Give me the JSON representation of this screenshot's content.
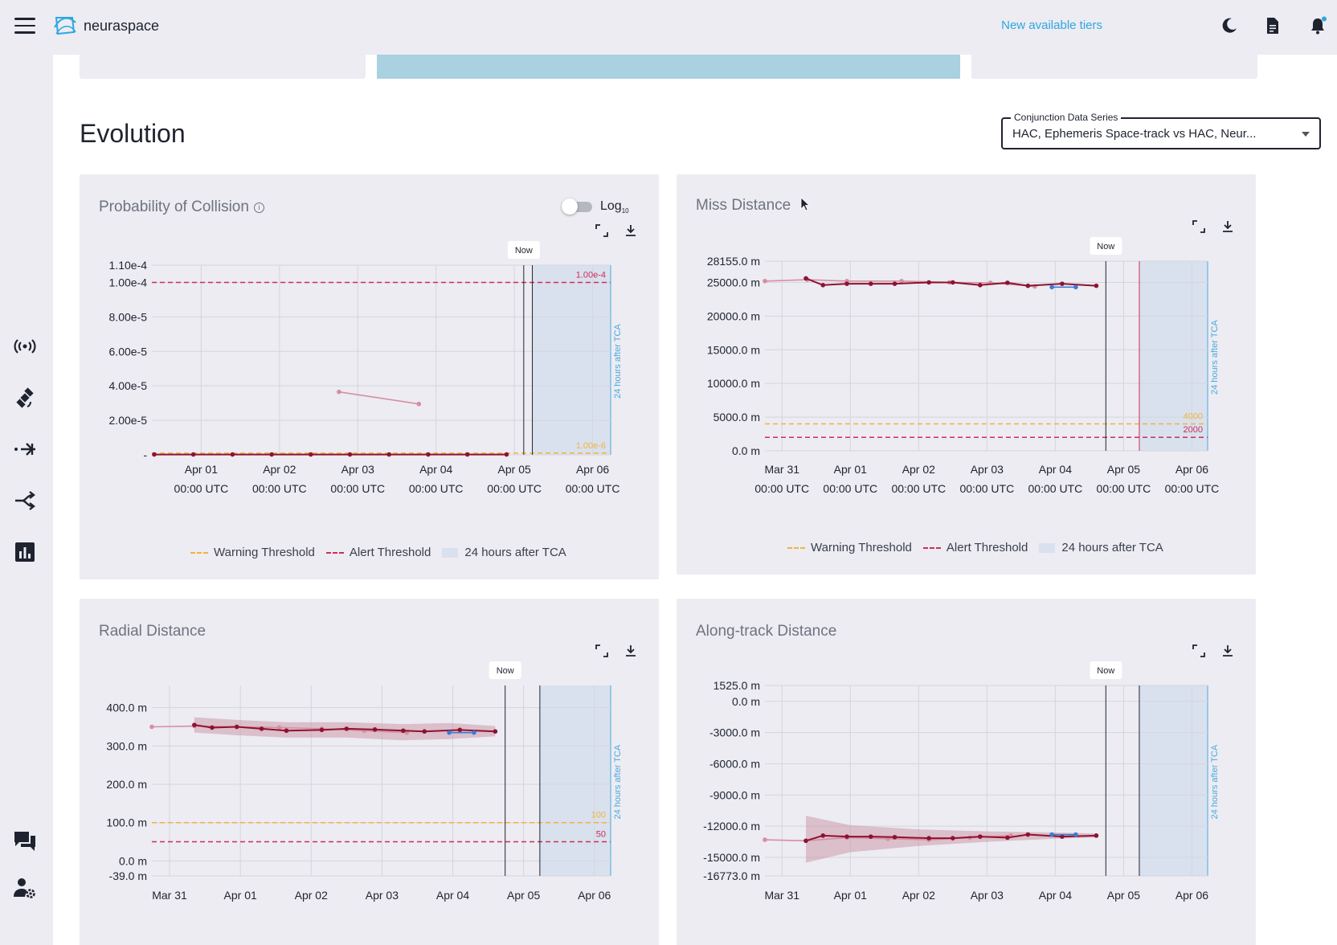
{
  "app": {
    "brand": "neuraspace",
    "tiers_link": "New available tiers"
  },
  "icons": {
    "menu": "menu-icon",
    "theme": "moon-icon",
    "docs": "document-icon",
    "bell": "bell-icon",
    "sidebar": [
      "antenna-icon",
      "satellite-icon",
      "merge-arrow-icon",
      "split-arrow-icon",
      "bar-chart-icon",
      "chat-icon",
      "user-settings-icon"
    ]
  },
  "colors": {
    "accent": "#2ea7e0",
    "warning": "#f0b43c",
    "alert": "#cc2e55",
    "series": "#8e1230",
    "series_light": "#d78ea2",
    "band": "#d9e1ef",
    "blue_series": "#3a7bd5"
  },
  "evolution": {
    "title": "Evolution",
    "series_select": {
      "label": "Conjunction Data Series",
      "value": "HAC, Ephemeris Space-track vs HAC, Neur..."
    }
  },
  "legend": {
    "warning": "Warning Threshold",
    "alert": "Alert Threshold",
    "band": "24 hours after TCA"
  },
  "chart_data": [
    {
      "id": "poc",
      "type": "line",
      "title": "Probability of Collision",
      "toggle_label": "Log",
      "toggle_sub": "10",
      "log_enabled": false,
      "now_label": "Now",
      "band_label": "24 hours after TCA",
      "x_ticks": [
        [
          "Apr 01",
          "00:00 UTC"
        ],
        [
          "Apr 02",
          "00:00 UTC"
        ],
        [
          "Apr 03",
          "00:00 UTC"
        ],
        [
          "Apr 04",
          "00:00 UTC"
        ],
        [
          "Apr 05",
          "00:00 UTC"
        ],
        [
          "Apr 06",
          "00:00 UTC"
        ]
      ],
      "x_tick_days": [
        1,
        2,
        3,
        4,
        5,
        6
      ],
      "xlim": [
        0.37,
        6.23
      ],
      "y_ticks": [
        [
          "1.10e-4",
          0.00011
        ],
        [
          "1.00e-4",
          0.0001
        ],
        [
          "8.00e-5",
          8e-05
        ],
        [
          "6.00e-5",
          6e-05
        ],
        [
          "4.00e-5",
          4e-05
        ],
        [
          "2.00e-5",
          2e-05
        ],
        [
          "-",
          0
        ]
      ],
      "ylim": [
        0,
        0.00011
      ],
      "alert_value": 0.0001,
      "alert_label": "1.00e-4",
      "warning_value": 1e-06,
      "warning_label": "1.00e-6",
      "now_day": 5.12,
      "tca_day": 5.23,
      "band": [
        5.23,
        6.23
      ],
      "series": [
        {
          "name": "primary",
          "style": "dark",
          "x": [
            0.4,
            0.9,
            1.4,
            1.9,
            2.4,
            2.9,
            3.4,
            3.9,
            4.4,
            4.9
          ],
          "y": [
            2e-07,
            2e-07,
            2e-07,
            2e-07,
            2e-07,
            2e-07,
            2e-07,
            2e-07,
            2e-07,
            2e-07
          ]
        },
        {
          "name": "secondary",
          "style": "light",
          "x": [
            2.76,
            3.78
          ],
          "y": [
            3.65e-05,
            2.95e-05
          ]
        }
      ]
    },
    {
      "id": "miss",
      "type": "line",
      "title": "Miss Distance",
      "now_label": "Now",
      "band_label": "24 hours after TCA",
      "x_ticks": [
        [
          "Mar 31",
          "00:00 UTC"
        ],
        [
          "Apr 01",
          "00:00 UTC"
        ],
        [
          "Apr 02",
          "00:00 UTC"
        ],
        [
          "Apr 03",
          "00:00 UTC"
        ],
        [
          "Apr 04",
          "00:00 UTC"
        ],
        [
          "Apr 05",
          "00:00 UTC"
        ],
        [
          "Apr 06",
          "00:00 UTC"
        ]
      ],
      "x_tick_days": [
        0,
        1,
        2,
        3,
        4,
        5,
        6
      ],
      "xlim": [
        -0.25,
        6.23
      ],
      "y_ticks": [
        [
          "28155.0 m",
          28155
        ],
        [
          "25000.0 m",
          25000
        ],
        [
          "20000.0 m",
          20000
        ],
        [
          "15000.0 m",
          15000
        ],
        [
          "10000.0 m",
          10000
        ],
        [
          "5000.0 m",
          5000
        ],
        [
          "0.0 m",
          0
        ]
      ],
      "ylim": [
        0,
        28155
      ],
      "alert_value": 2000,
      "alert_label": "2000",
      "warning_value": 4000,
      "warning_label": "4000",
      "now_day": 4.74,
      "tca_day": 5.23,
      "band": [
        5.23,
        6.23
      ],
      "series": [
        {
          "name": "light",
          "style": "light",
          "x": [
            -0.25,
            0.37,
            0.95,
            1.75,
            2.45,
            3.05,
            3.7
          ],
          "y": [
            25200,
            25400,
            25200,
            25200,
            25000,
            24950,
            24400
          ]
        },
        {
          "name": "dark",
          "style": "dark",
          "x": [
            0.35,
            0.6,
            0.95,
            1.3,
            1.65,
            2.15,
            2.5,
            2.9,
            3.3,
            3.6,
            4.1,
            4.6
          ],
          "y": [
            25600,
            24600,
            24800,
            24800,
            24800,
            25000,
            25000,
            24600,
            24950,
            24500,
            24800,
            24500
          ]
        },
        {
          "name": "blue",
          "style": "blue",
          "x": [
            3.95,
            4.3
          ],
          "y": [
            24300,
            24300
          ]
        }
      ]
    },
    {
      "id": "radial",
      "type": "line",
      "title": "Radial Distance",
      "now_label": "Now",
      "band_label": "24 hours after TCA",
      "x_ticks": [
        [
          "Mar 31",
          ""
        ],
        [
          "Apr 01",
          ""
        ],
        [
          "Apr 02",
          ""
        ],
        [
          "Apr 03",
          ""
        ],
        [
          "Apr 04",
          ""
        ],
        [
          "Apr 05",
          ""
        ],
        [
          "Apr 06",
          ""
        ]
      ],
      "x_tick_days": [
        0,
        1,
        2,
        3,
        4,
        5,
        6
      ],
      "xlim": [
        -0.25,
        6.23
      ],
      "y_ticks": [
        [
          "400.0 m",
          400
        ],
        [
          "300.0 m",
          300
        ],
        [
          "200.0 m",
          200
        ],
        [
          "100.0 m",
          100
        ],
        [
          "0.0 m",
          0
        ],
        [
          "-39.0 m",
          -39
        ]
      ],
      "ylim": [
        -39,
        458
      ],
      "alert_value": 50,
      "alert_label": "50",
      "warning_value": 100,
      "warning_label": "100",
      "now_day": 4.74,
      "tca_day": 5.23,
      "band": [
        5.23,
        6.23
      ],
      "series": [
        {
          "name": "light",
          "style": "light",
          "x": [
            -0.25,
            0.35,
            0.95,
            1.55,
            2.15,
            2.75,
            3.35
          ],
          "y": [
            350,
            352,
            350,
            348,
            345,
            340,
            335
          ]
        },
        {
          "name": "dark",
          "style": "dark",
          "x": [
            0.35,
            0.6,
            0.95,
            1.3,
            1.65,
            2.15,
            2.5,
            2.9,
            3.3,
            3.6,
            4.1,
            4.6
          ],
          "y": [
            355,
            348,
            350,
            345,
            340,
            342,
            345,
            343,
            340,
            338,
            342,
            338
          ]
        },
        {
          "name": "blue",
          "style": "blue",
          "x": [
            3.95,
            4.3
          ],
          "y": [
            335,
            335
          ]
        }
      ],
      "uncertainty": {
        "x": [
          0.35,
          0.95,
          1.65,
          2.5,
          3.3,
          3.95,
          4.6
        ],
        "upper": [
          375,
          368,
          362,
          362,
          357,
          360,
          352
        ],
        "lower": [
          335,
          328,
          322,
          322,
          315,
          318,
          325
        ]
      }
    },
    {
      "id": "along",
      "type": "line",
      "title": "Along-track Distance",
      "now_label": "Now",
      "band_label": "24 hours after TCA",
      "x_ticks": [
        [
          "Mar 31",
          ""
        ],
        [
          "Apr 01",
          ""
        ],
        [
          "Apr 02",
          ""
        ],
        [
          "Apr 03",
          ""
        ],
        [
          "Apr 04",
          ""
        ],
        [
          "Apr 05",
          ""
        ],
        [
          "Apr 06",
          ""
        ]
      ],
      "x_tick_days": [
        0,
        1,
        2,
        3,
        4,
        5,
        6
      ],
      "xlim": [
        -0.25,
        6.23
      ],
      "y_ticks": [
        [
          "1525.0 m",
          1525
        ],
        [
          "0.0 m",
          0
        ],
        [
          "-3000.0 m",
          -3000
        ],
        [
          "-6000.0 m",
          -6000
        ],
        [
          "-9000.0 m",
          -9000
        ],
        [
          "-12000.0 m",
          -12000
        ],
        [
          "-15000.0 m",
          -15000
        ],
        [
          "-16773.0 m",
          -16773
        ]
      ],
      "ylim": [
        -16773,
        1525
      ],
      "now_day": 4.74,
      "tca_day": 5.23,
      "band": [
        5.23,
        6.23
      ],
      "series": [
        {
          "name": "light",
          "style": "light",
          "x": [
            -0.25,
            0.35,
            0.95,
            1.55,
            2.15,
            2.75,
            3.35
          ],
          "y": [
            -13300,
            -13400,
            -13100,
            -13200,
            -13300,
            -13100,
            -12900
          ]
        },
        {
          "name": "dark",
          "style": "dark",
          "x": [
            0.35,
            0.6,
            0.95,
            1.3,
            1.65,
            2.15,
            2.5,
            2.9,
            3.3,
            3.6,
            4.1,
            4.6
          ],
          "y": [
            -13400,
            -12900,
            -13000,
            -13000,
            -13050,
            -13150,
            -13150,
            -13000,
            -13100,
            -12800,
            -13000,
            -12900
          ]
        },
        {
          "name": "blue",
          "style": "blue",
          "x": [
            3.95,
            4.3
          ],
          "y": [
            -12800,
            -12800
          ]
        }
      ],
      "uncertainty": {
        "x": [
          0.35,
          1.0,
          2.0,
          3.0,
          4.0,
          4.6
        ],
        "upper": [
          -11000,
          -11900,
          -12300,
          -12500,
          -12600,
          -12700
        ],
        "lower": [
          -15500,
          -14500,
          -13900,
          -13500,
          -13200,
          -13100
        ]
      }
    }
  ]
}
